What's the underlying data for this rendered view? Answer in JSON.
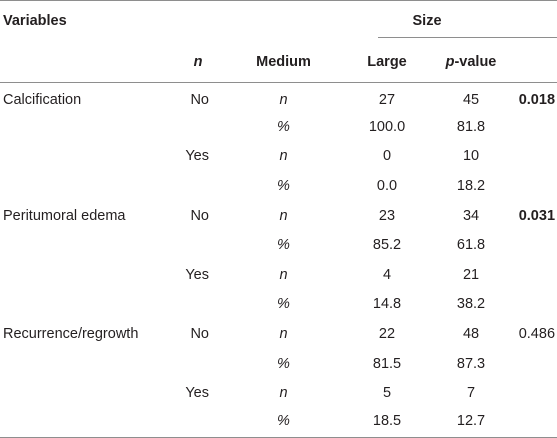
{
  "header": {
    "variables": "Variables",
    "size": "Size",
    "n": "n",
    "medium": "Medium",
    "large": "Large",
    "p_value_p": "p",
    "p_value_rest": "-value"
  },
  "rows": [
    {
      "variable": "Calcification",
      "answer": "No",
      "stat": "n",
      "medium": "27",
      "large": "45",
      "p": "0.018",
      "p_bold": true
    },
    {
      "variable": "",
      "answer": "",
      "stat": "%",
      "medium": "100.0",
      "large": "81.8",
      "p": "",
      "p_bold": false
    },
    {
      "variable": "",
      "answer": "Yes",
      "stat": "n",
      "medium": "0",
      "large": "10",
      "p": "",
      "p_bold": false
    },
    {
      "variable": "",
      "answer": "",
      "stat": "%",
      "medium": "0.0",
      "large": "18.2",
      "p": "",
      "p_bold": false
    },
    {
      "variable": "Peritumoral edema",
      "answer": "No",
      "stat": "n",
      "medium": "23",
      "large": "34",
      "p": "0.031",
      "p_bold": true
    },
    {
      "variable": "",
      "answer": "",
      "stat": "%",
      "medium": "85.2",
      "large": "61.8",
      "p": "",
      "p_bold": false
    },
    {
      "variable": "",
      "answer": "Yes",
      "stat": "n",
      "medium": "4",
      "large": "21",
      "p": "",
      "p_bold": false
    },
    {
      "variable": "",
      "answer": "",
      "stat": "%",
      "medium": "14.8",
      "large": "38.2",
      "p": "",
      "p_bold": false
    },
    {
      "variable": "Recurrence/regrowth",
      "answer": "No",
      "stat": "n",
      "medium": "22",
      "large": "48",
      "p": "0.486",
      "p_bold": false
    },
    {
      "variable": "",
      "answer": "",
      "stat": "%",
      "medium": "81.5",
      "large": "87.3",
      "p": "",
      "p_bold": false
    },
    {
      "variable": "",
      "answer": "Yes",
      "stat": "n",
      "medium": "5",
      "large": "7",
      "p": "",
      "p_bold": false
    },
    {
      "variable": "",
      "answer": "",
      "stat": "%",
      "medium": "18.5",
      "large": "12.7",
      "p": "",
      "p_bold": false
    }
  ]
}
